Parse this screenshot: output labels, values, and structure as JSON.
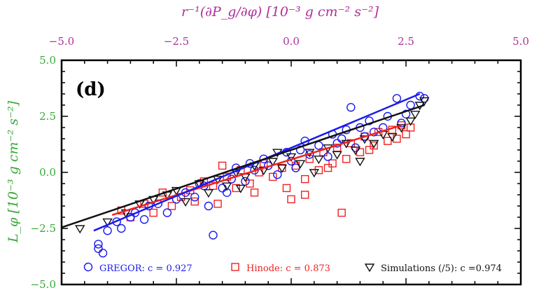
{
  "chart_data": {
    "type": "scatter",
    "panel_label": "(d)",
    "top_axis_label": "r⁻¹(∂P_g/∂φ) [10⁻³ g cm⁻² s⁻²]",
    "left_axis_label": "L_φ [10⁻³ g cm⁻² s⁻²]",
    "xlim": [
      -5.0,
      5.0
    ],
    "ylim": [
      -5.0,
      5.0
    ],
    "x_ticks": [
      "−5.0",
      "−2.5",
      "0.0",
      "2.5",
      "5.0"
    ],
    "y_ticks": [
      "5.0",
      "2.5",
      "0.0",
      "−2.5",
      "−5.0"
    ],
    "colors": {
      "top_axis": "#b0309a",
      "left_axis": "#3aa83a",
      "gregor": "#1a1aee",
      "hinode": "#ee2222",
      "simulations": "#111111"
    },
    "series": [
      {
        "name": "GREGOR",
        "legend": "GREGOR: c = 0.927",
        "marker": "circle",
        "fit": [
          [
            -4.3,
            -2.6
          ],
          [
            2.8,
            3.5
          ]
        ],
        "points": [
          [
            -4.1,
            -3.6
          ],
          [
            -4.2,
            -3.4
          ],
          [
            -4.2,
            -3.2
          ],
          [
            -4.0,
            -2.6
          ],
          [
            -3.8,
            -2.2
          ],
          [
            -3.7,
            -2.5
          ],
          [
            -3.5,
            -2.0
          ],
          [
            -3.4,
            -1.8
          ],
          [
            -3.2,
            -2.1
          ],
          [
            -3.1,
            -1.5
          ],
          [
            -2.9,
            -1.4
          ],
          [
            -2.7,
            -1.8
          ],
          [
            -2.5,
            -1.2
          ],
          [
            -2.3,
            -0.9
          ],
          [
            -2.1,
            -1.1
          ],
          [
            -1.9,
            -0.6
          ],
          [
            -1.8,
            -1.5
          ],
          [
            -1.7,
            -2.8
          ],
          [
            -1.5,
            -0.7
          ],
          [
            -1.3,
            -0.3
          ],
          [
            -1.2,
            0.2
          ],
          [
            -1.0,
            -0.4
          ],
          [
            -0.8,
            0.1
          ],
          [
            -0.6,
            0.6
          ],
          [
            -0.5,
            0.3
          ],
          [
            -0.3,
            -0.1
          ],
          [
            -0.1,
            0.9
          ],
          [
            0.0,
            0.5
          ],
          [
            0.2,
            1.0
          ],
          [
            0.3,
            1.4
          ],
          [
            0.4,
            0.8
          ],
          [
            0.6,
            1.2
          ],
          [
            0.8,
            0.7
          ],
          [
            0.9,
            1.7
          ],
          [
            1.0,
            1.3
          ],
          [
            1.2,
            1.9
          ],
          [
            1.3,
            2.9
          ],
          [
            1.4,
            1.1
          ],
          [
            1.6,
            1.6
          ],
          [
            1.7,
            2.3
          ],
          [
            1.8,
            1.8
          ],
          [
            2.0,
            2.0
          ],
          [
            2.1,
            2.5
          ],
          [
            2.3,
            3.3
          ],
          [
            2.4,
            2.2
          ],
          [
            2.5,
            2.6
          ],
          [
            2.6,
            3.0
          ],
          [
            2.8,
            3.4
          ],
          [
            2.9,
            3.3
          ],
          [
            1.1,
            1.5
          ],
          [
            -0.9,
            0.4
          ],
          [
            -2.0,
            -0.5
          ],
          [
            0.1,
            0.2
          ],
          [
            1.5,
            2.0
          ],
          [
            -1.4,
            -0.9
          ]
        ]
      },
      {
        "name": "Hinode",
        "legend": "Hinode: c = 0.873",
        "marker": "square",
        "fit": [
          [
            -3.9,
            -1.9
          ],
          [
            2.4,
            2.1
          ]
        ],
        "points": [
          [
            -3.7,
            -1.7
          ],
          [
            -3.5,
            -2.0
          ],
          [
            -3.2,
            -1.4
          ],
          [
            -3.0,
            -1.8
          ],
          [
            -2.8,
            -0.9
          ],
          [
            -2.6,
            -1.5
          ],
          [
            -2.4,
            -1.1
          ],
          [
            -2.2,
            -0.8
          ],
          [
            -2.1,
            -1.3
          ],
          [
            -1.9,
            -0.4
          ],
          [
            -1.7,
            -0.6
          ],
          [
            -1.6,
            -1.4
          ],
          [
            -1.4,
            -0.2
          ],
          [
            -1.2,
            -0.7
          ],
          [
            -1.1,
            0.1
          ],
          [
            -0.9,
            -0.5
          ],
          [
            -0.7,
            0.0
          ],
          [
            -0.6,
            0.4
          ],
          [
            -0.4,
            -0.2
          ],
          [
            -0.2,
            0.2
          ],
          [
            -0.1,
            -0.7
          ],
          [
            0.1,
            0.3
          ],
          [
            0.3,
            -0.3
          ],
          [
            0.4,
            0.6
          ],
          [
            0.6,
            0.1
          ],
          [
            0.7,
            0.9
          ],
          [
            0.9,
            0.4
          ],
          [
            1.0,
            1.1
          ],
          [
            1.2,
            0.6
          ],
          [
            1.3,
            1.3
          ],
          [
            1.5,
            0.9
          ],
          [
            1.6,
            1.6
          ],
          [
            1.8,
            1.2
          ],
          [
            1.9,
            1.8
          ],
          [
            2.1,
            1.4
          ],
          [
            2.2,
            1.9
          ],
          [
            2.3,
            1.5
          ],
          [
            2.4,
            2.1
          ],
          [
            2.5,
            1.7
          ],
          [
            2.6,
            2.0
          ],
          [
            0.0,
            -1.2
          ],
          [
            0.3,
            -1.0
          ],
          [
            1.1,
            -1.8
          ],
          [
            -0.8,
            -0.9
          ],
          [
            0.8,
            0.2
          ],
          [
            -1.5,
            0.3
          ],
          [
            1.7,
            1.0
          ]
        ]
      },
      {
        "name": "Simulations (/5)",
        "legend": "Simulations (/5): c =0.974",
        "marker": "triangle-down",
        "fit": [
          [
            -5.5,
            -2.8
          ],
          [
            2.9,
            3.0
          ]
        ],
        "points": [
          [
            -5.5,
            -2.8
          ],
          [
            -4.6,
            -2.5
          ],
          [
            -4.0,
            -2.2
          ],
          [
            -3.6,
            -1.8
          ],
          [
            -3.3,
            -1.4
          ],
          [
            -3.0,
            -1.2
          ],
          [
            -2.7,
            -1.0
          ],
          [
            -2.5,
            -0.8
          ],
          [
            -2.3,
            -1.3
          ],
          [
            -2.0,
            -0.5
          ],
          [
            -1.8,
            -0.9
          ],
          [
            -1.6,
            -0.3
          ],
          [
            -1.4,
            -0.6
          ],
          [
            -1.2,
            0.0
          ],
          [
            -1.0,
            -0.2
          ],
          [
            -0.8,
            0.3
          ],
          [
            -0.6,
            0.1
          ],
          [
            -0.4,
            0.5
          ],
          [
            -0.2,
            0.2
          ],
          [
            0.0,
            0.7
          ],
          [
            0.2,
            0.4
          ],
          [
            0.4,
            0.9
          ],
          [
            0.6,
            0.6
          ],
          [
            0.8,
            1.1
          ],
          [
            1.0,
            0.8
          ],
          [
            1.2,
            1.3
          ],
          [
            1.4,
            1.0
          ],
          [
            1.6,
            1.5
          ],
          [
            1.8,
            1.3
          ],
          [
            2.0,
            1.7
          ],
          [
            2.2,
            1.6
          ],
          [
            2.4,
            2.0
          ],
          [
            2.6,
            2.3
          ],
          [
            2.7,
            2.6
          ],
          [
            2.8,
            3.0
          ],
          [
            2.9,
            3.2
          ],
          [
            -1.1,
            -0.7
          ],
          [
            0.5,
            0.0
          ],
          [
            1.5,
            0.5
          ],
          [
            -0.3,
            0.9
          ]
        ]
      }
    ]
  }
}
